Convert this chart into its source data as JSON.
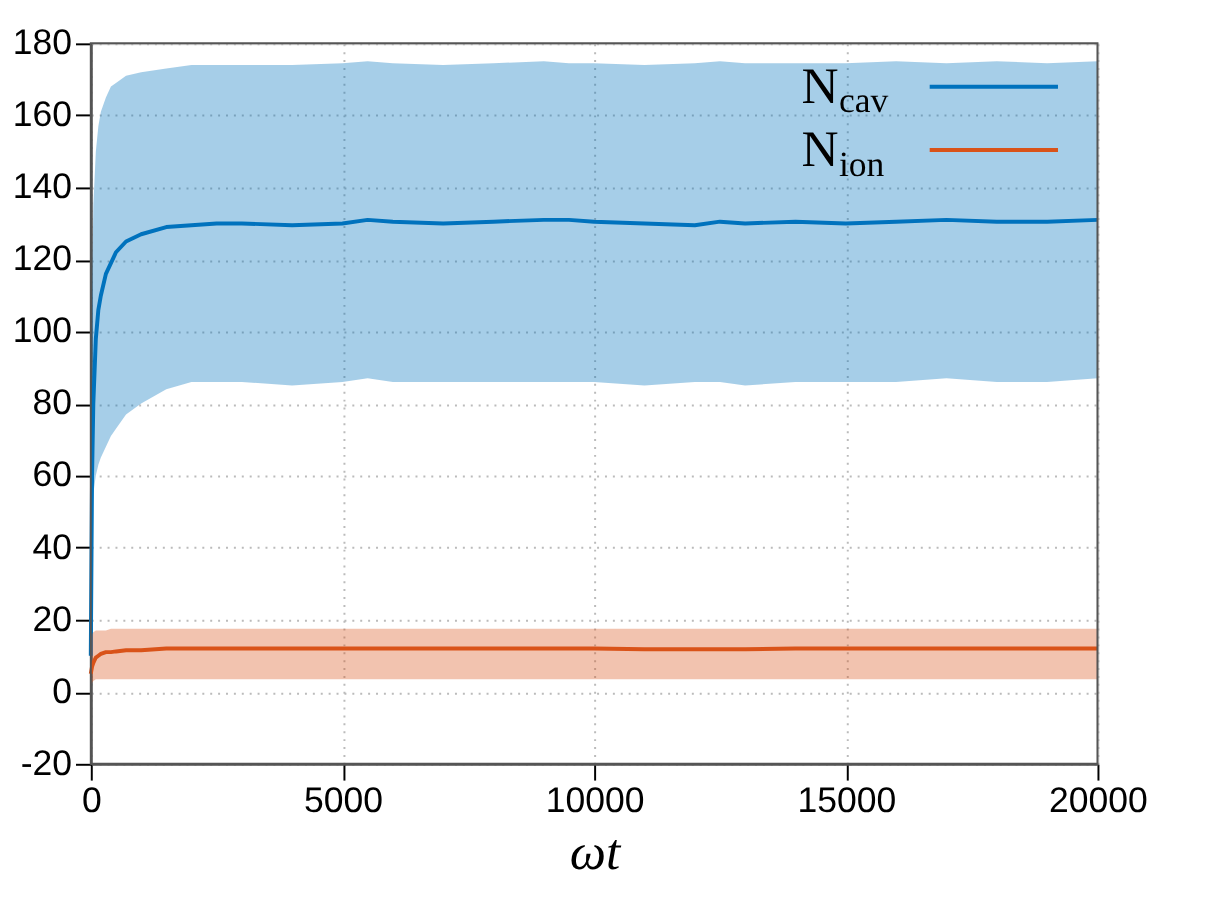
{
  "chart_data": {
    "type": "line",
    "xlabel": "ωt",
    "x": [
      0,
      25,
      50,
      100,
      150,
      200,
      300,
      400,
      500,
      700,
      1000,
      1500,
      2000,
      2500,
      3000,
      4000,
      5000,
      5500,
      6000,
      7000,
      8000,
      9000,
      9500,
      10000,
      11000,
      12000,
      12500,
      13000,
      14000,
      15000,
      16000,
      17000,
      18000,
      19000,
      20000
    ],
    "series": [
      {
        "name": "N$_{cav}$",
        "color": "#0072bd",
        "values": [
          10,
          60,
          80,
          98,
          106,
          110,
          116,
          119,
          122,
          125,
          127,
          129,
          129.5,
          130,
          130,
          129.5,
          130,
          131,
          130.5,
          130,
          130.5,
          131,
          131,
          130.5,
          130,
          129.5,
          130.5,
          130,
          130.5,
          130,
          130.5,
          131,
          130.5,
          130.5,
          131
        ],
        "lower": [
          5,
          45,
          55,
          60,
          63,
          65,
          68,
          71,
          73,
          77,
          80,
          84,
          86,
          86,
          86,
          85,
          86,
          87,
          86,
          86,
          86,
          86,
          86,
          86,
          85,
          86,
          86,
          85,
          86,
          86,
          86,
          87,
          86,
          86,
          87
        ],
        "upper": [
          50,
          110,
          135,
          150,
          157,
          161,
          165,
          168,
          169,
          171,
          172,
          173,
          174,
          174,
          174,
          174,
          174.5,
          175,
          174.5,
          174,
          174.5,
          175,
          174.5,
          174.5,
          174,
          174.5,
          175,
          174.5,
          174.5,
          174.5,
          175,
          174.5,
          175,
          174.5,
          175
        ]
      },
      {
        "name": "N$_{ion}$",
        "color": "#d95319",
        "values": [
          5,
          7,
          8,
          9.5,
          10,
          10.5,
          11,
          11,
          11.2,
          11.5,
          11.5,
          12,
          12,
          12,
          12,
          12,
          12,
          12,
          12,
          12,
          12,
          12,
          12,
          12,
          11.8,
          11.8,
          11.8,
          11.8,
          12,
          12,
          12,
          12,
          12,
          12,
          12
        ],
        "lower": [
          2,
          2.5,
          3,
          3.5,
          3.5,
          3.5,
          3.5,
          3.5,
          3.5,
          3.5,
          3.5,
          3.5,
          3.5,
          3.5,
          3.5,
          3.5,
          3.5,
          3.5,
          3.5,
          3.5,
          3.5,
          3.5,
          3.5,
          3.5,
          3.5,
          3.5,
          3.5,
          3.5,
          3.5,
          3.5,
          3.5,
          3.5,
          3.5,
          3.5,
          3.5
        ],
        "upper": [
          15,
          16,
          16.5,
          17,
          17,
          17,
          17,
          17.5,
          17.5,
          17.5,
          17.5,
          17.5,
          17.5,
          17.5,
          17.5,
          17.5,
          17.5,
          17.5,
          17.5,
          17.5,
          17.5,
          17.5,
          17.5,
          17.5,
          17.5,
          17.5,
          17.5,
          17.5,
          17.5,
          17.5,
          17.5,
          17.5,
          17.5,
          17.5,
          17.5
        ]
      }
    ],
    "xlim": [
      0,
      20000
    ],
    "xticks": [
      0,
      5000,
      10000,
      15000,
      20000
    ],
    "ylim": [
      -20,
      180
    ],
    "yticks": [
      -20,
      0,
      20,
      40,
      60,
      80,
      100,
      120,
      140,
      160,
      180
    ],
    "grid": true,
    "legend": "top right",
    "line_style": "solid",
    "marker": "none"
  }
}
